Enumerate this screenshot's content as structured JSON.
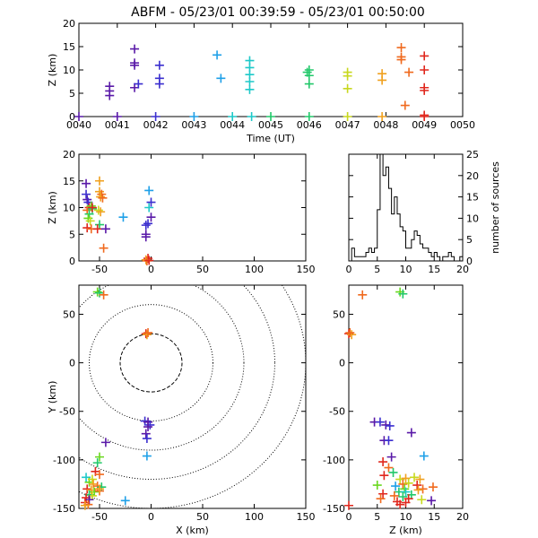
{
  "title": "ABFM - 05/23/01 00:39:59 - 05/23/01 00:50:00",
  "colors": {
    "axis": "#000000",
    "marker_palette": [
      "#5a1aa8",
      "#3b2fcf",
      "#1fa0e8",
      "#1ec9c9",
      "#22c86a",
      "#6ad81e",
      "#c8d81e",
      "#f0a01e",
      "#f06a1e",
      "#e0281e"
    ]
  },
  "chart_data": [
    {
      "type": "scatter",
      "id": "time_height",
      "xlabel": "Time (UT)",
      "ylabel": "Z (km)",
      "xlim": [
        "0040",
        "0050"
      ],
      "ylim": [
        0,
        20
      ],
      "x_ticks": [
        "0040",
        "0041",
        "0042",
        "0043",
        "0044",
        "0045",
        "0046",
        "0047",
        "0048",
        "0049",
        "0050"
      ],
      "y_ticks": [
        "0",
        "5",
        "10",
        "15",
        "20"
      ],
      "points": [
        {
          "t": "0040:00",
          "z": 0.0,
          "c": 0
        },
        {
          "t": "0040:48",
          "z": 4.5,
          "c": 0
        },
        {
          "t": "0040:48",
          "z": 5.5,
          "c": 0
        },
        {
          "t": "0040:48",
          "z": 6.5,
          "c": 0
        },
        {
          "t": "0041:00",
          "z": 0.0,
          "c": 0
        },
        {
          "t": "0041:27",
          "z": 14.5,
          "c": 0
        },
        {
          "t": "0041:27",
          "z": 11.5,
          "c": 0
        },
        {
          "t": "0041:27",
          "z": 11.0,
          "c": 0
        },
        {
          "t": "0041:27",
          "z": 6.2,
          "c": 0
        },
        {
          "t": "0041:33",
          "z": 7.0,
          "c": 1
        },
        {
          "t": "0042:00",
          "z": 0.0,
          "c": 1
        },
        {
          "t": "0042:06",
          "z": 11.0,
          "c": 1
        },
        {
          "t": "0042:06",
          "z": 8.2,
          "c": 1
        },
        {
          "t": "0042:06",
          "z": 7.0,
          "c": 1
        },
        {
          "t": "0043:00",
          "z": 0.0,
          "c": 2
        },
        {
          "t": "0043:36",
          "z": 13.2,
          "c": 2
        },
        {
          "t": "0043:42",
          "z": 8.2,
          "c": 2
        },
        {
          "t": "0044:00",
          "z": 0.0,
          "c": 3
        },
        {
          "t": "0044:27",
          "z": 12.0,
          "c": 3
        },
        {
          "t": "0044:27",
          "z": 10.5,
          "c": 3
        },
        {
          "t": "0044:27",
          "z": 9.0,
          "c": 3
        },
        {
          "t": "0044:27",
          "z": 7.5,
          "c": 3
        },
        {
          "t": "0044:27",
          "z": 5.8,
          "c": 3
        },
        {
          "t": "0044:30",
          "z": 0.0,
          "c": 3
        },
        {
          "t": "0045:00",
          "z": 0.0,
          "c": 4
        },
        {
          "t": "0045:57",
          "z": 9.5,
          "c": 4
        },
        {
          "t": "0046:00",
          "z": 10.0,
          "c": 4
        },
        {
          "t": "0046:00",
          "z": 8.8,
          "c": 4
        },
        {
          "t": "0046:00",
          "z": 7.0,
          "c": 4
        },
        {
          "t": "0046:00",
          "z": 0.0,
          "c": 4
        },
        {
          "t": "0047:00",
          "z": 9.5,
          "c": 6
        },
        {
          "t": "0047:00",
          "z": 8.7,
          "c": 6
        },
        {
          "t": "0047:00",
          "z": 6.0,
          "c": 6
        },
        {
          "t": "0047:00",
          "z": 0.0,
          "c": 6
        },
        {
          "t": "0047:54",
          "z": 9.2,
          "c": 7
        },
        {
          "t": "0047:54",
          "z": 7.8,
          "c": 7
        },
        {
          "t": "0047:54",
          "z": 0.0,
          "c": 7
        },
        {
          "t": "0048:24",
          "z": 14.8,
          "c": 8
        },
        {
          "t": "0048:24",
          "z": 12.8,
          "c": 8
        },
        {
          "t": "0048:24",
          "z": 12.2,
          "c": 8
        },
        {
          "t": "0048:36",
          "z": 9.5,
          "c": 8
        },
        {
          "t": "0048:30",
          "z": 2.4,
          "c": 8
        },
        {
          "t": "0049:00",
          "z": 13.0,
          "c": 9
        },
        {
          "t": "0049:00",
          "z": 10.0,
          "c": 9
        },
        {
          "t": "0049:00",
          "z": 6.2,
          "c": 9
        },
        {
          "t": "0049:00",
          "z": 5.6,
          "c": 9
        },
        {
          "t": "0049:00",
          "z": 0.3,
          "c": 9
        },
        {
          "t": "0049:00",
          "z": 0.0,
          "c": 9
        }
      ]
    },
    {
      "type": "scatter",
      "id": "x_height",
      "xlabel": "",
      "ylabel": "Z (km)",
      "xlim": [
        -70,
        150
      ],
      "ylim": [
        0,
        20
      ],
      "x_ticks": [
        "-50",
        "0",
        "50",
        "100",
        "150"
      ],
      "y_ticks": [
        "0",
        "5",
        "10",
        "15",
        "20"
      ],
      "points": [
        {
          "x": -63,
          "z": 14.5,
          "c": 0
        },
        {
          "x": -62,
          "z": 11.5,
          "c": 0
        },
        {
          "x": -61,
          "z": 11.0,
          "c": 1
        },
        {
          "x": -63,
          "z": 12.5,
          "c": 1
        },
        {
          "x": -60,
          "z": 10.0,
          "c": 9
        },
        {
          "x": -62,
          "z": 9.5,
          "c": 8
        },
        {
          "x": -60,
          "z": 8.8,
          "c": 4
        },
        {
          "x": -61,
          "z": 8.0,
          "c": 5
        },
        {
          "x": -59,
          "z": 7.5,
          "c": 6
        },
        {
          "x": -58,
          "z": 10.3,
          "c": 5
        },
        {
          "x": -57,
          "z": 9.8,
          "c": 4
        },
        {
          "x": -62,
          "z": 6.2,
          "c": 9
        },
        {
          "x": -58,
          "z": 6.0,
          "c": 8
        },
        {
          "x": -57,
          "z": 10.0,
          "c": 9
        },
        {
          "x": -50,
          "z": 15.0,
          "c": 7
        },
        {
          "x": -50,
          "z": 13.0,
          "c": 7
        },
        {
          "x": -48,
          "z": 12.5,
          "c": 8
        },
        {
          "x": -49,
          "z": 12.0,
          "c": 7
        },
        {
          "x": -47,
          "z": 11.8,
          "c": 8
        },
        {
          "x": -51,
          "z": 9.5,
          "c": 6
        },
        {
          "x": -49,
          "z": 9.2,
          "c": 7
        },
        {
          "x": -50,
          "z": 6.8,
          "c": 4
        },
        {
          "x": -52,
          "z": 6.0,
          "c": 9
        },
        {
          "x": -46,
          "z": 2.4,
          "c": 8
        },
        {
          "x": -44,
          "z": 6.0,
          "c": 0
        },
        {
          "x": -27,
          "z": 8.2,
          "c": 2
        },
        {
          "x": -2,
          "z": 13.2,
          "c": 2
        },
        {
          "x": 0,
          "z": 11.0,
          "c": 1
        },
        {
          "x": -2,
          "z": 10.0,
          "c": 3
        },
        {
          "x": 0,
          "z": 8.2,
          "c": 0
        },
        {
          "x": -3,
          "z": 7.0,
          "c": 1
        },
        {
          "x": -5,
          "z": 6.7,
          "c": 1
        },
        {
          "x": -5,
          "z": 5.0,
          "c": 0
        },
        {
          "x": -5,
          "z": 4.5,
          "c": 0
        },
        {
          "x": -3,
          "z": 0.5,
          "c": 9
        },
        {
          "x": -5,
          "z": 0.2,
          "c": 7
        },
        {
          "x": -4,
          "z": 0.0,
          "c": 8
        },
        {
          "x": -2,
          "z": 0.1,
          "c": 9
        }
      ]
    },
    {
      "type": "bar",
      "id": "height_histogram",
      "xlabel": "",
      "ylabel": "number of sources",
      "xlim": [
        0,
        20
      ],
      "ylim": [
        0,
        25
      ],
      "x_ticks": [
        "0",
        "5",
        "10",
        "15",
        "20"
      ],
      "y_ticks": [
        "0",
        "5",
        "10",
        "15",
        "20",
        "25"
      ],
      "bin_width": 0.5,
      "bin_start": 0,
      "counts": [
        0,
        3,
        1,
        1,
        1,
        1,
        2,
        3,
        2,
        3,
        12,
        25,
        20,
        22,
        17,
        11,
        15,
        11,
        8,
        7,
        3,
        3,
        5,
        7,
        6,
        4,
        3,
        3,
        2,
        1,
        2,
        1,
        0,
        1,
        1,
        2,
        1,
        0,
        0,
        1
      ]
    },
    {
      "type": "scatter",
      "id": "plan_view",
      "xlabel": "X (km)",
      "ylabel": "Y (km)",
      "xlim": [
        -70,
        150
      ],
      "ylim": [
        -150,
        80
      ],
      "x_ticks": [
        "-50",
        "0",
        "50",
        "100",
        "150"
      ],
      "y_ticks": [
        "-150",
        "-100",
        "-50",
        "0",
        "50"
      ],
      "range_rings_km": [
        30,
        60,
        90,
        120,
        150
      ],
      "points": [
        {
          "x": -52,
          "y": 73,
          "c": 5
        },
        {
          "x": -50,
          "y": 72,
          "c": 4
        },
        {
          "x": -46,
          "y": 70,
          "c": 8
        },
        {
          "x": -5,
          "y": 30,
          "c": 9
        },
        {
          "x": -4,
          "y": 29,
          "c": 7
        },
        {
          "x": -3,
          "y": 31,
          "c": 8
        },
        {
          "x": -6,
          "y": -60,
          "c": 1
        },
        {
          "x": -3,
          "y": -61,
          "c": 0
        },
        {
          "x": -1,
          "y": -64,
          "c": 1
        },
        {
          "x": -3,
          "y": -66,
          "c": 0
        },
        {
          "x": -5,
          "y": -73,
          "c": 0
        },
        {
          "x": -4,
          "y": -78,
          "c": 1
        },
        {
          "x": -44,
          "y": -82,
          "c": 0
        },
        {
          "x": -4,
          "y": -96,
          "c": 2
        },
        {
          "x": -50,
          "y": -97,
          "c": 5
        },
        {
          "x": -52,
          "y": -103,
          "c": 4
        },
        {
          "x": -54,
          "y": -112,
          "c": 9
        },
        {
          "x": -50,
          "y": -115,
          "c": 8
        },
        {
          "x": -63,
          "y": -118,
          "c": 3
        },
        {
          "x": -60,
          "y": -123,
          "c": 5
        },
        {
          "x": -57,
          "y": -120,
          "c": 6
        },
        {
          "x": -56,
          "y": -125,
          "c": 7
        },
        {
          "x": -52,
          "y": -127,
          "c": 8
        },
        {
          "x": -48,
          "y": -128,
          "c": 4
        },
        {
          "x": -62,
          "y": -130,
          "c": 9
        },
        {
          "x": -58,
          "y": -131,
          "c": 7
        },
        {
          "x": -55,
          "y": -133,
          "c": 5
        },
        {
          "x": -50,
          "y": -132,
          "c": 8
        },
        {
          "x": -60,
          "y": -136,
          "c": 4
        },
        {
          "x": -57,
          "y": -137,
          "c": 6
        },
        {
          "x": -63,
          "y": -139,
          "c": 9
        },
        {
          "x": -60,
          "y": -141,
          "c": 0
        },
        {
          "x": -64,
          "y": -144,
          "c": 9
        },
        {
          "x": -61,
          "y": -146,
          "c": 8
        },
        {
          "x": -64,
          "y": -147,
          "c": 7
        },
        {
          "x": -25,
          "y": -142,
          "c": 2
        },
        {
          "x": -50,
          "y": -130,
          "c": 7
        }
      ]
    },
    {
      "type": "scatter",
      "id": "z_plan",
      "xlabel": "Z (km)",
      "ylabel": "",
      "xlim": [
        0,
        20
      ],
      "ylim": [
        -150,
        80
      ],
      "x_ticks": [
        "0",
        "5",
        "10",
        "15",
        "20"
      ],
      "y_ticks": [
        "-150",
        "-100",
        "-50",
        "0",
        "50"
      ],
      "points": [
        {
          "z": 2.4,
          "y": 70,
          "c": 8
        },
        {
          "z": 9.0,
          "y": 73,
          "c": 5
        },
        {
          "z": 9.5,
          "y": 71,
          "c": 4
        },
        {
          "z": 0.0,
          "y": 30,
          "c": 9
        },
        {
          "z": 0.5,
          "y": 29,
          "c": 7
        },
        {
          "z": 0.2,
          "y": 31,
          "c": 8
        },
        {
          "z": 4.5,
          "y": -61,
          "c": 0
        },
        {
          "z": 5.5,
          "y": -61,
          "c": 1
        },
        {
          "z": 6.5,
          "y": -64,
          "c": 0
        },
        {
          "z": 7.2,
          "y": -65,
          "c": 1
        },
        {
          "z": 11.0,
          "y": -72,
          "c": 0
        },
        {
          "z": 6.2,
          "y": -80,
          "c": 0
        },
        {
          "z": 7.0,
          "y": -80,
          "c": 1
        },
        {
          "z": 7.5,
          "y": -97,
          "c": 0
        },
        {
          "z": 13.2,
          "y": -96,
          "c": 2
        },
        {
          "z": 6.0,
          "y": -102,
          "c": 9
        },
        {
          "z": 7.0,
          "y": -108,
          "c": 8
        },
        {
          "z": 6.2,
          "y": -116,
          "c": 9
        },
        {
          "z": 7.8,
          "y": -113,
          "c": 4
        },
        {
          "z": 9.0,
          "y": -120,
          "c": 6
        },
        {
          "z": 10.0,
          "y": -119,
          "c": 7
        },
        {
          "z": 11.5,
          "y": -118,
          "c": 6
        },
        {
          "z": 12.5,
          "y": -120,
          "c": 7
        },
        {
          "z": 5.0,
          "y": -126,
          "c": 5
        },
        {
          "z": 8.2,
          "y": -127,
          "c": 2
        },
        {
          "z": 9.5,
          "y": -125,
          "c": 8
        },
        {
          "z": 10.5,
          "y": -124,
          "c": 6
        },
        {
          "z": 12.0,
          "y": -126,
          "c": 9
        },
        {
          "z": 14.8,
          "y": -128,
          "c": 8
        },
        {
          "z": 13.0,
          "y": -130,
          "c": 8
        },
        {
          "z": 12.2,
          "y": -131,
          "c": 7
        },
        {
          "z": 9.8,
          "y": -130,
          "c": 5
        },
        {
          "z": 8.8,
          "y": -133,
          "c": 4
        },
        {
          "z": 10.0,
          "y": -133,
          "c": 3
        },
        {
          "z": 6.0,
          "y": -135,
          "c": 9
        },
        {
          "z": 11.0,
          "y": -136,
          "c": 4
        },
        {
          "z": 8.0,
          "y": -137,
          "c": 8
        },
        {
          "z": 9.5,
          "y": -138,
          "c": 4
        },
        {
          "z": 5.6,
          "y": -140,
          "c": 8
        },
        {
          "z": 10.5,
          "y": -140,
          "c": 9
        },
        {
          "z": 12.8,
          "y": -141,
          "c": 6
        },
        {
          "z": 14.5,
          "y": -142,
          "c": 0
        },
        {
          "z": 8.5,
          "y": -143,
          "c": 9
        },
        {
          "z": 9.0,
          "y": -146,
          "c": 9
        },
        {
          "z": 10.0,
          "y": -144,
          "c": 9
        },
        {
          "z": 0.0,
          "y": -147,
          "c": 9
        }
      ]
    }
  ]
}
